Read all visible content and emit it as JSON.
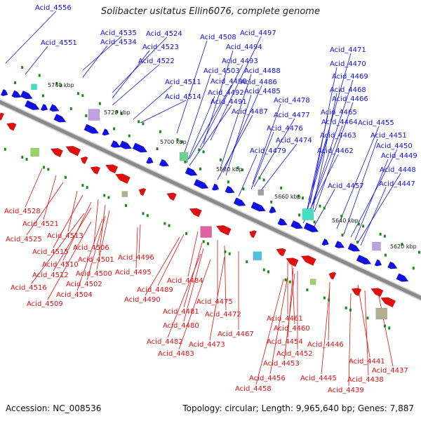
{
  "title": "Solibacter usitatus Ellin6076, complete genome",
  "footer": {
    "accession": "Accession: NC_008536",
    "summary": "Topology: circular; Length: 9,965,640 bp; Genes: 7,887"
  },
  "colors": {
    "forward": "#1010e0",
    "reverse": "#e01010",
    "backbone": "#8a8a8a",
    "feature": "#1a8a1a"
  },
  "ticks": [
    "5740 kbp",
    "5720 kbp",
    "5700 kbp",
    "5680 kbp",
    "5660 kbp",
    "5640 kbp",
    "5620 kbp"
  ],
  "forward_genes": [
    "Acid_4556",
    "Acid_4551",
    "Acid_4535",
    "Acid_4534",
    "Acid_4524",
    "Acid_4523",
    "Acid_4522",
    "Acid_4511",
    "Acid_4514",
    "Acid_4508",
    "Acid_4497",
    "Acid_4494",
    "Acid_4493",
    "Acid_4503",
    "Acid_4498",
    "Acid_4492",
    "Acid_4491",
    "Acid_4488",
    "Acid_4486",
    "Acid_4485",
    "Acid_4487",
    "Acid_4478",
    "Acid_4477",
    "Acid_4476",
    "Acid_4474",
    "Acid_4479",
    "Acid_4471",
    "Acid_4470",
    "Acid_4469",
    "Acid_4468",
    "Acid_4466",
    "Acid_4465",
    "Acid_4464",
    "Acid_4463",
    "Acid_4462",
    "Acid_4457",
    "Acid_4455",
    "Acid_4451",
    "Acid_4450",
    "Acid_4449",
    "Acid_4448",
    "Acid_4447"
  ],
  "reverse_genes": [
    "Acid_4528",
    "Acid_4521",
    "Acid_4525",
    "Acid_4513",
    "Acid_4515",
    "Acid_4506",
    "Acid_4510",
    "Acid_4501",
    "Acid_4512",
    "Acid_4500",
    "Acid_4516",
    "Acid_4502",
    "Acid_4504",
    "Acid_4509",
    "Acid_4496",
    "Acid_4495",
    "Acid_4484",
    "Acid_4489",
    "Acid_4490",
    "Acid_4475",
    "Acid_4481",
    "Acid_4472",
    "Acid_4480",
    "Acid_4467",
    "Acid_4482",
    "Acid_4473",
    "Acid_4483",
    "Acid_4461",
    "Acid_4460",
    "Acid_4454",
    "Acid_4452",
    "Acid_4453",
    "Acid_4456",
    "Acid_4458",
    "Acid_4446",
    "Acid_4441",
    "Acid_4445",
    "Acid_4438",
    "Acid_4439",
    "Acid_4437"
  ]
}
